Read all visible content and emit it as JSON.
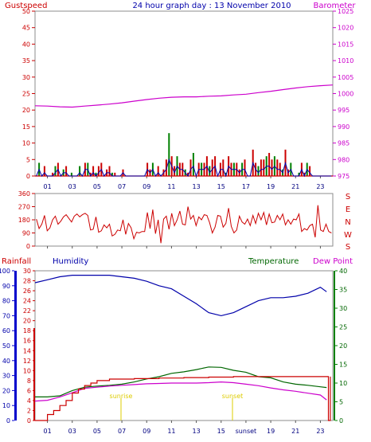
{
  "header": {
    "left": "Gustspeed",
    "title": "24 hour graph day : 13 November 2010",
    "right": "Barometer"
  },
  "x_ticks": [
    "01",
    "03",
    "05",
    "07",
    "09",
    "11",
    "13",
    "15",
    "17",
    "19",
    "21",
    "23"
  ],
  "lower_x_ticks": [
    "01",
    "03",
    "05",
    "07",
    "09",
    "11",
    "13",
    "15",
    "sunset",
    "19",
    "21",
    "23"
  ],
  "colors": {
    "gust": "#cc0000",
    "avg_wind": "#0000aa",
    "wind_green": "#008000",
    "barometer": "#cc00cc",
    "direction": "#cc0000",
    "humidity": "#0000aa",
    "temperature": "#006600",
    "dewpoint": "#cc00cc",
    "rainfall": "#cc0000",
    "sun": "#ddcc00"
  },
  "direction_labels": [
    "S",
    "E",
    "N",
    "W",
    "S"
  ],
  "lower_labels": {
    "rainfall": "Rainfall",
    "humidity": "Humidity",
    "temperature": "Temperature",
    "dewpoint": "Dew Point"
  },
  "sun_labels": {
    "sunrise": "sunrise",
    "sunset": "sunset"
  },
  "chart_data": [
    {
      "type": "line",
      "name": "wind-barometer",
      "ylim_left": [
        0,
        50
      ],
      "yticks_left": [
        0,
        5,
        10,
        15,
        20,
        25,
        30,
        35,
        40,
        45,
        50
      ],
      "ylim_right": [
        975,
        1025
      ],
      "yticks_right": [
        975,
        980,
        985,
        990,
        995,
        1000,
        1005,
        1010,
        1015,
        1020,
        1025
      ],
      "series": [
        {
          "name": "Gustspeed",
          "values": [
            0,
            4,
            0,
            3,
            0,
            0,
            1,
            3,
            4,
            0,
            2,
            3,
            0,
            1,
            0,
            0,
            3,
            0,
            4,
            4,
            1,
            3,
            1,
            3,
            4,
            0,
            2,
            3,
            1,
            1,
            0,
            0,
            2,
            0,
            0,
            0,
            0,
            0,
            0,
            0,
            0,
            4,
            2,
            4,
            0,
            3,
            0,
            2,
            5,
            13,
            6,
            3,
            6,
            4,
            4,
            2,
            1,
            5,
            7,
            0,
            4,
            4,
            4,
            6,
            3,
            5,
            6,
            0,
            4,
            5,
            1,
            6,
            4,
            4,
            4,
            2,
            4,
            5,
            0,
            0,
            8,
            4,
            3,
            5,
            5,
            6,
            7,
            5,
            6,
            5,
            4,
            2,
            8,
            2,
            4,
            0,
            0,
            1,
            4,
            1,
            4,
            3,
            0,
            0,
            0,
            0,
            0,
            0,
            0,
            0
          ]
        },
        {
          "name": "Average wind",
          "values": [
            0,
            2,
            0,
            1,
            0,
            0,
            0,
            1,
            2,
            0,
            1,
            1,
            0,
            0,
            0,
            0,
            1,
            0,
            2,
            2,
            0,
            1,
            0,
            1,
            2,
            0,
            1,
            1,
            0,
            0,
            0,
            0,
            1,
            0,
            0,
            0,
            0,
            0,
            0,
            0,
            0,
            2,
            1,
            2,
            0,
            1,
            0,
            1,
            2,
            5,
            3,
            1,
            3,
            2,
            2,
            1,
            0,
            2,
            3,
            0,
            2,
            2,
            2,
            3,
            1,
            2,
            3,
            0,
            2,
            2,
            0,
            3,
            2,
            2,
            2,
            1,
            2,
            2,
            0,
            0,
            4,
            2,
            1,
            2,
            2,
            3,
            3,
            2,
            3,
            2,
            2,
            1,
            4,
            1,
            2,
            0,
            0,
            0,
            2,
            0,
            2,
            1,
            0,
            0,
            0,
            0,
            0,
            0,
            0,
            0
          ]
        },
        {
          "name": "Barometer",
          "x": [
            0,
            1,
            2,
            3,
            4,
            5,
            6,
            7,
            8,
            9,
            10,
            11,
            12,
            13,
            14,
            15,
            16,
            17,
            18,
            19,
            20,
            21,
            22,
            23,
            24
          ],
          "values": [
            996.3,
            996.2,
            996.0,
            995.9,
            996.2,
            996.5,
            996.8,
            997.2,
            997.7,
            998.2,
            998.6,
            998.9,
            999.0,
            999.0,
            999.2,
            999.3,
            999.6,
            999.8,
            1000.3,
            1000.7,
            1001.2,
            1001.7,
            1002.1,
            1002.4,
            1002.6
          ]
        }
      ]
    },
    {
      "type": "line",
      "name": "wind-direction",
      "ylim": [
        0,
        360
      ],
      "yticks": [
        0,
        90,
        180,
        270,
        360
      ],
      "series": [
        {
          "name": "Direction",
          "values": [
            185,
            120,
            150,
            210,
            105,
            125,
            180,
            205,
            150,
            170,
            200,
            215,
            190,
            165,
            205,
            220,
            200,
            215,
            225,
            210,
            110,
            115,
            200,
            95,
            105,
            145,
            125,
            150,
            70,
            80,
            110,
            105,
            180,
            80,
            155,
            125,
            50,
            95,
            90,
            100,
            100,
            230,
            120,
            250,
            85,
            180,
            20,
            185,
            205,
            115,
            225,
            140,
            180,
            240,
            150,
            145,
            270,
            185,
            210,
            140,
            200,
            180,
            215,
            210,
            160,
            90,
            130,
            210,
            205,
            130,
            155,
            260,
            135,
            90,
            110,
            205,
            165,
            150,
            185,
            140,
            210,
            155,
            225,
            180,
            230,
            145,
            220,
            160,
            165,
            210,
            180,
            220,
            145,
            180,
            150,
            185,
            180,
            220,
            100,
            120,
            110,
            140,
            150,
            60,
            280,
            110,
            100,
            150,
            100,
            90
          ]
        }
      ]
    },
    {
      "type": "line",
      "name": "temp-humidity-rain",
      "ylim_humidity": [
        0,
        100
      ],
      "yticks_humidity": [
        0,
        10,
        20,
        30,
        40,
        50,
        60,
        70,
        80,
        90,
        100
      ],
      "ylim_rain": [
        0,
        30
      ],
      "yticks_rain": [
        0,
        2,
        4,
        6,
        8,
        10,
        12,
        14,
        16,
        18,
        20,
        22,
        24,
        26,
        28,
        30
      ],
      "ylim_temp": [
        0,
        40
      ],
      "yticks_temp": [
        0,
        5,
        10,
        15,
        20,
        25,
        30,
        35,
        40
      ],
      "series": [
        {
          "name": "Humidity",
          "x": [
            0,
            1,
            2,
            3,
            4,
            5,
            6,
            7,
            8,
            9,
            10,
            11,
            12,
            13,
            14,
            15,
            16,
            17,
            18,
            19,
            20,
            21,
            22,
            23,
            23.5
          ],
          "values": [
            92,
            94,
            96,
            97,
            97,
            97,
            97,
            96,
            95,
            93,
            90,
            88,
            83,
            78,
            72,
            70,
            72,
            76,
            80,
            82,
            82,
            83,
            85,
            89,
            86
          ]
        },
        {
          "name": "Temperature",
          "x": [
            0,
            1,
            2,
            3,
            4,
            5,
            6,
            7,
            8,
            9,
            10,
            11,
            12,
            13,
            14,
            15,
            16,
            17,
            18,
            19,
            20,
            21,
            22,
            23,
            23.5
          ],
          "values": [
            6.3,
            6.3,
            6.6,
            8.0,
            8.9,
            9.2,
            9.4,
            9.7,
            10.3,
            11.1,
            11.7,
            12.6,
            13.0,
            13.6,
            14.3,
            14.2,
            13.4,
            12.9,
            11.7,
            11.4,
            10.3,
            9.7,
            9.4,
            9.0,
            8.8
          ]
        },
        {
          "name": "Dew Point",
          "x": [
            0,
            1,
            2,
            3,
            4,
            5,
            6,
            7,
            8,
            9,
            10,
            11,
            12,
            13,
            14,
            15,
            16,
            17,
            18,
            19,
            20,
            21,
            22,
            23,
            23.5
          ],
          "values": [
            5.2,
            5.4,
            6.3,
            7.4,
            8.6,
            8.9,
            9.2,
            9.4,
            9.6,
            9.8,
            9.9,
            10.0,
            10.0,
            10.0,
            10.1,
            10.3,
            10.1,
            9.7,
            9.3,
            8.7,
            8.2,
            7.8,
            7.3,
            6.8,
            5.5
          ]
        },
        {
          "name": "Rainfall",
          "x": [
            0,
            1,
            1.5,
            2,
            2.5,
            3,
            3.5,
            4,
            4.5,
            5,
            6,
            8,
            10,
            12,
            14,
            16,
            18,
            20,
            22,
            23.6,
            23.65,
            23.8
          ],
          "values": [
            0,
            1.2,
            2.0,
            3.0,
            4.0,
            5.5,
            6.3,
            7.0,
            7.5,
            8.0,
            8.3,
            8.4,
            8.5,
            8.6,
            8.7,
            8.8,
            8.8,
            8.8,
            8.8,
            8.8,
            0,
            8.8
          ]
        }
      ]
    }
  ]
}
